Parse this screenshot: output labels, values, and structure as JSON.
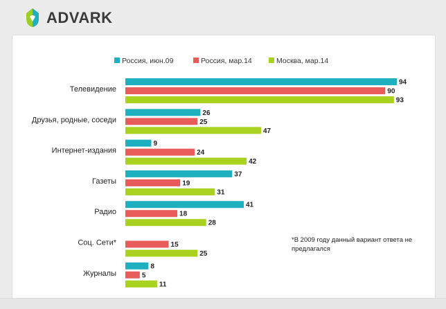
{
  "brand": {
    "name": "ADVARK"
  },
  "chart_data": {
    "type": "bar",
    "orientation": "horizontal",
    "categories": [
      "Телевидение",
      "Друзья, родные, соседи",
      "Интернет-издания",
      "Газеты",
      "Радио",
      "Соц. Сети*",
      "Журналы"
    ],
    "series": [
      {
        "name": "Россия, июн.09",
        "color": "#1fb0bf",
        "values": [
          94,
          26,
          9,
          37,
          41,
          null,
          8
        ]
      },
      {
        "name": "Россия, мар.14",
        "color": "#e85b5b",
        "values": [
          90,
          25,
          24,
          19,
          18,
          15,
          5
        ]
      },
      {
        "name": "Москва, мар.14",
        "color": "#a8d21f",
        "values": [
          93,
          47,
          42,
          31,
          28,
          25,
          11
        ]
      }
    ],
    "xlim": [
      0,
      100
    ],
    "legend_position": "top",
    "grid": false,
    "note": "*В 2009 году данный вариант ответа не предлагался"
  }
}
